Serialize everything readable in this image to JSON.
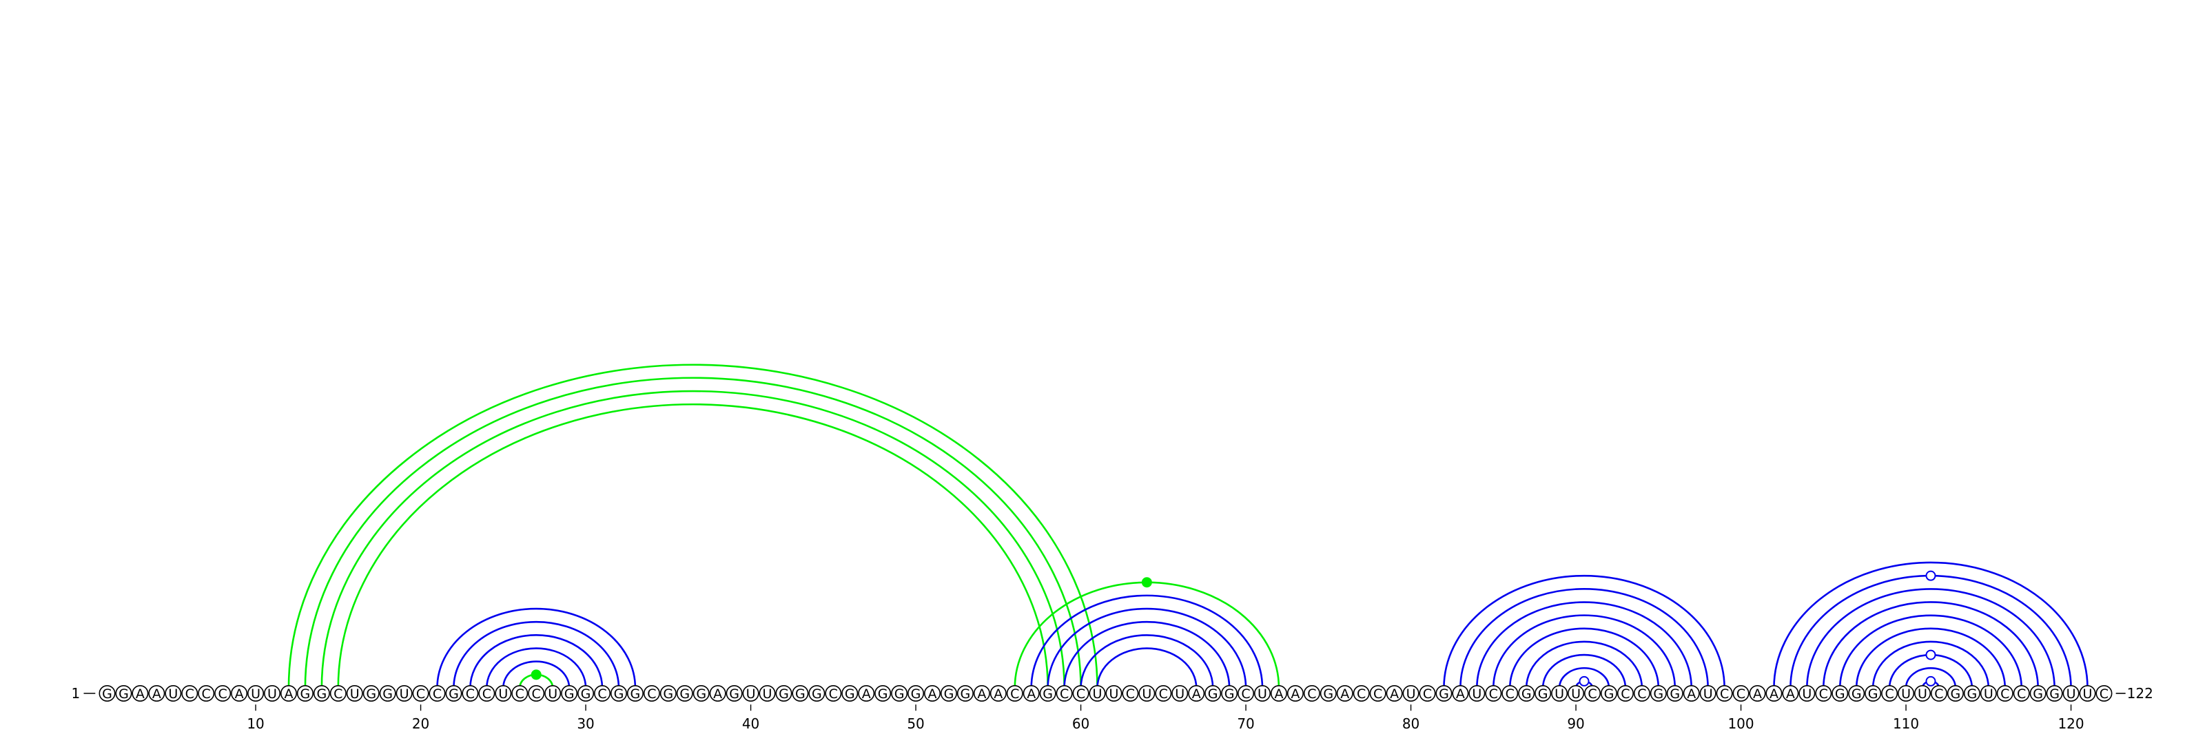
{
  "sequence": "GGAAUCCCAUUAGGCUGGUCCGCCUCCUGGCGGCGGGAGUUGGGCGAGGGAGGAACAGCCUUCUCUAGGCUAACGACCAUCGAUCCGGUUCGCCGGAUCCAAAUCGGGCUUCGGUCCGGUUC",
  "start_label": "1",
  "end_label": "122",
  "ticks": [
    10,
    20,
    30,
    40,
    50,
    60,
    70,
    80,
    90,
    100,
    110,
    120
  ],
  "colors": {
    "blue": "#0000ee",
    "green": "#00ee00"
  },
  "arcs": [
    {
      "i": 21,
      "j": 33,
      "color": "blue"
    },
    {
      "i": 22,
      "j": 32,
      "color": "blue"
    },
    {
      "i": 23,
      "j": 31,
      "color": "blue"
    },
    {
      "i": 24,
      "j": 30,
      "color": "blue"
    },
    {
      "i": 25,
      "j": 29,
      "color": "blue"
    },
    {
      "i": 26,
      "j": 28,
      "color": "green",
      "marker": "dot"
    },
    {
      "i": 12,
      "j": 61,
      "color": "green"
    },
    {
      "i": 13,
      "j": 60,
      "color": "green"
    },
    {
      "i": 14,
      "j": 59,
      "color": "green"
    },
    {
      "i": 15,
      "j": 58,
      "color": "green"
    },
    {
      "i": 56,
      "j": 72,
      "color": "green",
      "marker": "dot"
    },
    {
      "i": 57,
      "j": 71,
      "color": "blue"
    },
    {
      "i": 58,
      "j": 70,
      "color": "blue"
    },
    {
      "i": 59,
      "j": 69,
      "color": "blue"
    },
    {
      "i": 60,
      "j": 68,
      "color": "blue"
    },
    {
      "i": 61,
      "j": 67,
      "color": "blue"
    },
    {
      "i": 82,
      "j": 99,
      "color": "blue"
    },
    {
      "i": 83,
      "j": 98,
      "color": "blue"
    },
    {
      "i": 84,
      "j": 97,
      "color": "blue"
    },
    {
      "i": 85,
      "j": 96,
      "color": "blue"
    },
    {
      "i": 86,
      "j": 95,
      "color": "blue"
    },
    {
      "i": 87,
      "j": 94,
      "color": "blue"
    },
    {
      "i": 88,
      "j": 93,
      "color": "blue"
    },
    {
      "i": 89,
      "j": 92,
      "color": "blue"
    },
    {
      "i": 90,
      "j": 91,
      "color": "blue",
      "marker": "open"
    },
    {
      "i": 102,
      "j": 121,
      "color": "blue"
    },
    {
      "i": 103,
      "j": 120,
      "color": "blue",
      "marker": "open"
    },
    {
      "i": 104,
      "j": 119,
      "color": "blue"
    },
    {
      "i": 105,
      "j": 118,
      "color": "blue"
    },
    {
      "i": 106,
      "j": 117,
      "color": "blue"
    },
    {
      "i": 107,
      "j": 116,
      "color": "blue"
    },
    {
      "i": 108,
      "j": 115,
      "color": "blue"
    },
    {
      "i": 109,
      "j": 114,
      "color": "blue",
      "marker": "open"
    },
    {
      "i": 110,
      "j": 113,
      "color": "blue"
    },
    {
      "i": 111,
      "j": 112,
      "color": "blue",
      "marker": "open"
    }
  ]
}
